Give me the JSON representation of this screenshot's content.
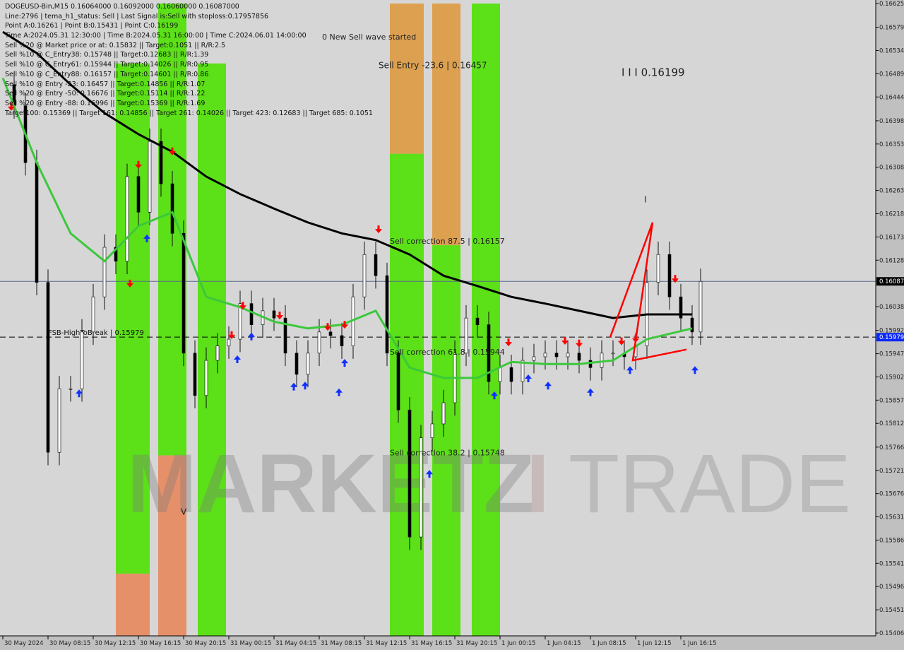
{
  "header": {
    "lines": [
      "DOGEUSD-Bin,M15  0.16064000 0.16092000 0.16060000 0.16087000",
      "Line:2796 | tema_h1_status: Sell | Last Signal is:Sell with stoploss:0.17957856",
      "Point A:0.16261 | Point B:0.15431 | Point C:0.16199",
      "Time A:2024.05.31 12:30:00 | Time B:2024.05.31 16:00:00 | Time C:2024.06.01 14:00:00",
      "Sell %20 @ Market price or at: 0.15832 || Target:0.1051 || R/R:2.5",
      "Sell %10 @ C_Entry38: 0.15748 || Target:0.12683 || R/R:1.39",
      "Sell %10 @ C_Entry61: 0.15944 || Target:0.14026 || R/R:0.95",
      "Sell %10 @ C_Entry88: 0.16157 || Target:0.14601 || R/R:0.86",
      "Sell %10 @ Entry -23: 0.16457 || Target:0.14856 || R/R:1.07",
      "Sell %20 @ Entry -50: 0.16676 || Target:0.15114 || R/R:1.22",
      "Sell %20 @ Entry -88: 0.16996 || Target:0.15369 || R/R:1.69",
      "Target100: 0.15369 || Target 161: 0.14856 || Target 261: 0.14026 || Target 423: 0.12683 || Target 685: 0.1051"
    ]
  },
  "watermark": {
    "part1": "MARKETZ",
    "part2": "I",
    "part3": "TRADE"
  },
  "colors": {
    "background": "#d6d6d6",
    "axis_bg": "#c0c0c0",
    "band_green": "#5ce018",
    "band_orange": "#dca050",
    "band_salmon": "#e6906a",
    "ma_slow": "#000000",
    "ma_fast": "#3cc83c",
    "price": "#111111",
    "current_price_tag": "#000000",
    "fsb_tag": "#0a28ff",
    "sell_arrow": "#ff0000",
    "buy_arrow": "#1030ff",
    "wave_line": "#ff0000"
  },
  "chart_data": {
    "type": "line",
    "title": "DOGEUSD-Bin,M15",
    "ylim": [
      0.15406,
      0.16625
    ],
    "y_ticks": [
      "0.16625",
      "0.16579",
      "0.16534",
      "0.16489",
      "0.16444",
      "0.16398",
      "0.16353",
      "0.16308",
      "0.16263",
      "0.16218",
      "0.16173",
      "0.16128",
      "0.16038",
      "0.15992",
      "0.15947",
      "0.15902",
      "0.15857",
      "0.15812",
      "0.15766",
      "0.15721",
      "0.15676",
      "0.15631",
      "0.15586",
      "0.15541",
      "0.15496",
      "0.15451",
      "0.15406"
    ],
    "x_ticks": [
      {
        "t": "05-30 04:15",
        "label": "30 May 2024"
      },
      {
        "t": "05-30 08:15",
        "label": "30 May 08:15"
      },
      {
        "t": "05-30 12:15",
        "label": "30 May 12:15"
      },
      {
        "t": "05-30 16:15",
        "label": "30 May 16:15"
      },
      {
        "t": "05-30 20:15",
        "label": "30 May 20:15"
      },
      {
        "t": "05-31 00:15",
        "label": "31 May 00:15"
      },
      {
        "t": "05-31 04:15",
        "label": "31 May 04:15"
      },
      {
        "t": "05-31 08:15",
        "label": "31 May 08:15"
      },
      {
        "t": "05-31 12:15",
        "label": "31 May 12:15"
      },
      {
        "t": "05-31 16:15",
        "label": "31 May 16:15"
      },
      {
        "t": "05-31 20:15",
        "label": "31 May 20:15"
      },
      {
        "t": "06-01 00:15",
        "label": "1 Jun 00:15"
      },
      {
        "t": "06-01 04:15",
        "label": "1 Jun 04:15"
      },
      {
        "t": "06-01 08:15",
        "label": "1 Jun 08:15"
      },
      {
        "t": "06-01 12:15",
        "label": "1 Jun 12:15"
      },
      {
        "t": "06-01 16:15",
        "label": "1 Jun 16:15"
      }
    ],
    "current_price": {
      "value": 0.16087,
      "label": "0.16087"
    },
    "fsb_level": {
      "value": 0.15979,
      "label": "0.15979",
      "text": "FSB-HighToBreak | 0.15979"
    },
    "price_series": [
      [
        "05-30 04:15",
        0.16468
      ],
      [
        "05-30 05:15",
        0.16427
      ],
      [
        "05-30 06:15",
        0.16317
      ],
      [
        "05-30 07:15",
        0.16085
      ],
      [
        "05-30 08:15",
        0.15756
      ],
      [
        "05-30 09:15",
        0.15879
      ],
      [
        "05-30 10:15",
        0.15879
      ],
      [
        "05-30 11:15",
        0.15989
      ],
      [
        "05-30 12:15",
        0.16057
      ],
      [
        "05-30 13:15",
        0.16153
      ],
      [
        "05-30 14:15",
        0.16126
      ],
      [
        "05-30 15:15",
        0.1629
      ],
      [
        "05-30 16:15",
        0.16221
      ],
      [
        "05-30 17:15",
        0.16358
      ],
      [
        "05-30 18:15",
        0.16276
      ],
      [
        "05-30 19:15",
        0.1618
      ],
      [
        "05-30 20:15",
        0.15948
      ],
      [
        "05-30 21:15",
        0.15866
      ],
      [
        "05-30 22:15",
        0.15934
      ],
      [
        "05-30 23:15",
        0.15962
      ],
      [
        "05-31 00:15",
        0.15975
      ],
      [
        "05-31 01:15",
        0.16044
      ],
      [
        "05-31 02:15",
        0.16003
      ],
      [
        "05-31 03:15",
        0.1603
      ],
      [
        "05-31 04:15",
        0.16016
      ],
      [
        "05-31 05:15",
        0.15948
      ],
      [
        "05-31 06:15",
        0.15907
      ],
      [
        "05-31 07:15",
        0.15948
      ],
      [
        "05-31 08:15",
        0.15989
      ],
      [
        "05-31 09:15",
        0.15982
      ],
      [
        "05-31 10:15",
        0.15962
      ],
      [
        "05-31 11:15",
        0.16057
      ],
      [
        "05-31 12:15",
        0.16139
      ],
      [
        "05-31 13:15",
        0.16098
      ],
      [
        "05-31 14:15",
        0.15948
      ],
      [
        "05-31 15:15",
        0.15838
      ],
      [
        "05-31 16:15",
        0.15592
      ],
      [
        "05-31 17:15",
        0.15784
      ],
      [
        "05-31 18:15",
        0.15811
      ],
      [
        "05-31 19:15",
        0.15852
      ],
      [
        "05-31 20:15",
        0.15948
      ],
      [
        "05-31 21:15",
        0.16016
      ],
      [
        "05-31 22:15",
        0.16003
      ],
      [
        "05-31 23:15",
        0.15893
      ],
      [
        "06-01 00:15",
        0.1592
      ],
      [
        "06-01 01:15",
        0.15893
      ],
      [
        "06-01 02:15",
        0.15934
      ],
      [
        "06-01 03:15",
        0.15941
      ],
      [
        "06-01 04:15",
        0.15948
      ],
      [
        "06-01 05:15",
        0.15941
      ],
      [
        "06-01 06:15",
        0.15948
      ],
      [
        "06-01 07:15",
        0.15934
      ],
      [
        "06-01 08:15",
        0.1592
      ],
      [
        "06-01 09:15",
        0.15948
      ],
      [
        "06-01 10:15",
        0.15948
      ],
      [
        "06-01 11:15",
        0.15941
      ],
      [
        "06-01 12:15",
        0.15962
      ],
      [
        "06-01 13:15",
        0.16085
      ],
      [
        "06-01 14:15",
        0.16139
      ],
      [
        "06-01 15:15",
        0.16057
      ],
      [
        "06-01 16:15",
        0.16016
      ],
      [
        "06-01 17:15",
        0.15989
      ],
      [
        "06-01 18:00",
        0.16087
      ]
    ],
    "ma_slow": [
      [
        "05-30 04:15",
        0.1657
      ],
      [
        "05-30 07:15",
        0.16529
      ],
      [
        "05-30 10:15",
        0.16468
      ],
      [
        "05-30 13:15",
        0.16413
      ],
      [
        "05-30 16:15",
        0.16372
      ],
      [
        "05-30 19:15",
        0.16338
      ],
      [
        "05-30 22:15",
        0.1629
      ],
      [
        "05-31 01:15",
        0.16256
      ],
      [
        "05-31 04:15",
        0.16228
      ],
      [
        "05-31 07:15",
        0.16201
      ],
      [
        "05-31 10:15",
        0.1618
      ],
      [
        "05-31 13:15",
        0.16167
      ],
      [
        "05-31 16:15",
        0.16139
      ],
      [
        "05-31 19:15",
        0.16098
      ],
      [
        "05-31 22:15",
        0.16078
      ],
      [
        "06-01 01:15",
        0.16057
      ],
      [
        "06-01 04:15",
        0.16044
      ],
      [
        "06-01 07:15",
        0.1603
      ],
      [
        "06-01 10:15",
        0.16016
      ],
      [
        "06-01 13:15",
        0.16023
      ],
      [
        "06-01 17:15",
        0.16023
      ]
    ],
    "ma_fast": [
      [
        "05-30 04:15",
        0.16481
      ],
      [
        "05-30 07:15",
        0.16317
      ],
      [
        "05-30 10:15",
        0.1618
      ],
      [
        "05-30 13:15",
        0.16126
      ],
      [
        "05-30 16:15",
        0.16194
      ],
      [
        "05-30 19:15",
        0.16221
      ],
      [
        "05-30 22:15",
        0.16057
      ],
      [
        "05-31 01:15",
        0.16037
      ],
      [
        "05-31 04:15",
        0.16009
      ],
      [
        "05-31 07:15",
        0.15996
      ],
      [
        "05-31 10:15",
        0.16003
      ],
      [
        "05-31 13:15",
        0.1603
      ],
      [
        "05-31 16:15",
        0.1592
      ],
      [
        "05-31 19:15",
        0.159
      ],
      [
        "05-31 22:15",
        0.159
      ],
      [
        "06-01 01:15",
        0.15931
      ],
      [
        "06-01 04:15",
        0.15927
      ],
      [
        "06-01 07:15",
        0.15927
      ],
      [
        "06-01 10:15",
        0.15934
      ],
      [
        "06-01 13:15",
        0.15975
      ],
      [
        "06-01 17:15",
        0.15996
      ]
    ],
    "bands": [
      {
        "start": "05-30 14:15",
        "end": "05-30 17:15",
        "upper": "green",
        "lower": "salmon",
        "top": 0.16509,
        "split": 0.15521
      },
      {
        "start": "05-30 18:00",
        "end": "05-30 20:30",
        "upper": "green",
        "lower": "salmon",
        "top": 0.16625,
        "split": 0.1575
      },
      {
        "start": "05-30 21:30",
        "end": "05-31 00:00",
        "upper": "green",
        "lower": "green",
        "top": 0.16509,
        "split": 0.15406
      },
      {
        "start": "05-31 14:30",
        "end": "05-31 17:30",
        "upper": "orange",
        "lower": "green",
        "top": 0.16625,
        "split": 0.16334
      },
      {
        "start": "05-31 18:15",
        "end": "05-31 20:45",
        "upper": "orange",
        "lower": "green",
        "top": 0.16625,
        "split": 0.16157
      },
      {
        "start": "05-31 21:45",
        "end": "06-01 00:15",
        "upper": "green",
        "lower": "green",
        "top": 0.16625,
        "split": 0.15406
      }
    ],
    "sell_signals": [
      [
        "05-30 05:00",
        0.1642
      ],
      [
        "05-30 16:15",
        0.16308
      ],
      [
        "05-30 19:15",
        0.16334
      ],
      [
        "05-30 15:30",
        0.16078
      ],
      [
        "05-31 00:30",
        0.15978
      ],
      [
        "05-31 01:30",
        0.16035
      ],
      [
        "05-31 04:45",
        0.16016
      ],
      [
        "05-31 09:00",
        0.15994
      ],
      [
        "05-31 10:30",
        0.15998
      ],
      [
        "05-31 13:30",
        0.16183
      ],
      [
        "06-01 01:00",
        0.15964
      ],
      [
        "06-01 06:00",
        0.15967
      ],
      [
        "06-01 07:15",
        0.15962
      ],
      [
        "06-01 11:00",
        0.15966
      ],
      [
        "06-01 12:15",
        0.15971
      ],
      [
        "06-01 15:45",
        0.16087
      ]
    ],
    "buy_signals": [
      [
        "05-30 11:00",
        0.15875
      ],
      [
        "05-30 17:00",
        0.16175
      ],
      [
        "05-31 01:00",
        0.15941
      ],
      [
        "05-31 02:15",
        0.15985
      ],
      [
        "05-31 06:00",
        0.15888
      ],
      [
        "05-31 07:00",
        0.1589
      ],
      [
        "05-31 10:00",
        0.15877
      ],
      [
        "05-31 10:30",
        0.15934
      ],
      [
        "05-31 18:00",
        0.15719
      ],
      [
        "05-31 23:45",
        0.15871
      ],
      [
        "06-01 02:45",
        0.15904
      ],
      [
        "06-01 04:30",
        0.1589
      ],
      [
        "06-01 08:15",
        0.15877
      ],
      [
        "06-01 11:45",
        0.1592
      ],
      [
        "06-01 17:30",
        0.1592
      ]
    ],
    "wave_line": [
      [
        "06-01 10:00",
        0.15979
      ],
      [
        "06-01 13:45",
        0.16201
      ],
      [
        "06-01 12:00",
        0.15934
      ],
      [
        "06-01 16:45",
        0.15955
      ]
    ],
    "annotations": [
      {
        "t": "05-31 08:30",
        "p": 0.16555,
        "text": "0 New Sell wave started",
        "size": 11
      },
      {
        "t": "05-31 13:30",
        "p": 0.165,
        "text": "Sell Entry -23.6 | 0.16457",
        "size": 12
      },
      {
        "t": "06-01 11:00",
        "p": 0.16485,
        "text": "I I I 0.16199",
        "size": 15
      },
      {
        "t": "05-31 14:30",
        "p": 0.1616,
        "text": "Sell correction 87.5 | 0.16157",
        "size": 11
      },
      {
        "t": "05-31 14:30",
        "p": 0.15945,
        "text": "Sell correction 61.8 | 0.15944",
        "size": 11
      },
      {
        "t": "05-31 14:30",
        "p": 0.1575,
        "text": "Sell correction 38.2 | 0.15748",
        "size": 11
      },
      {
        "t": "06-01 13:00",
        "p": 0.1624,
        "text": "I",
        "size": 12
      },
      {
        "t": "05-30 20:00",
        "p": 0.15635,
        "text": "V",
        "size": 12
      }
    ]
  }
}
